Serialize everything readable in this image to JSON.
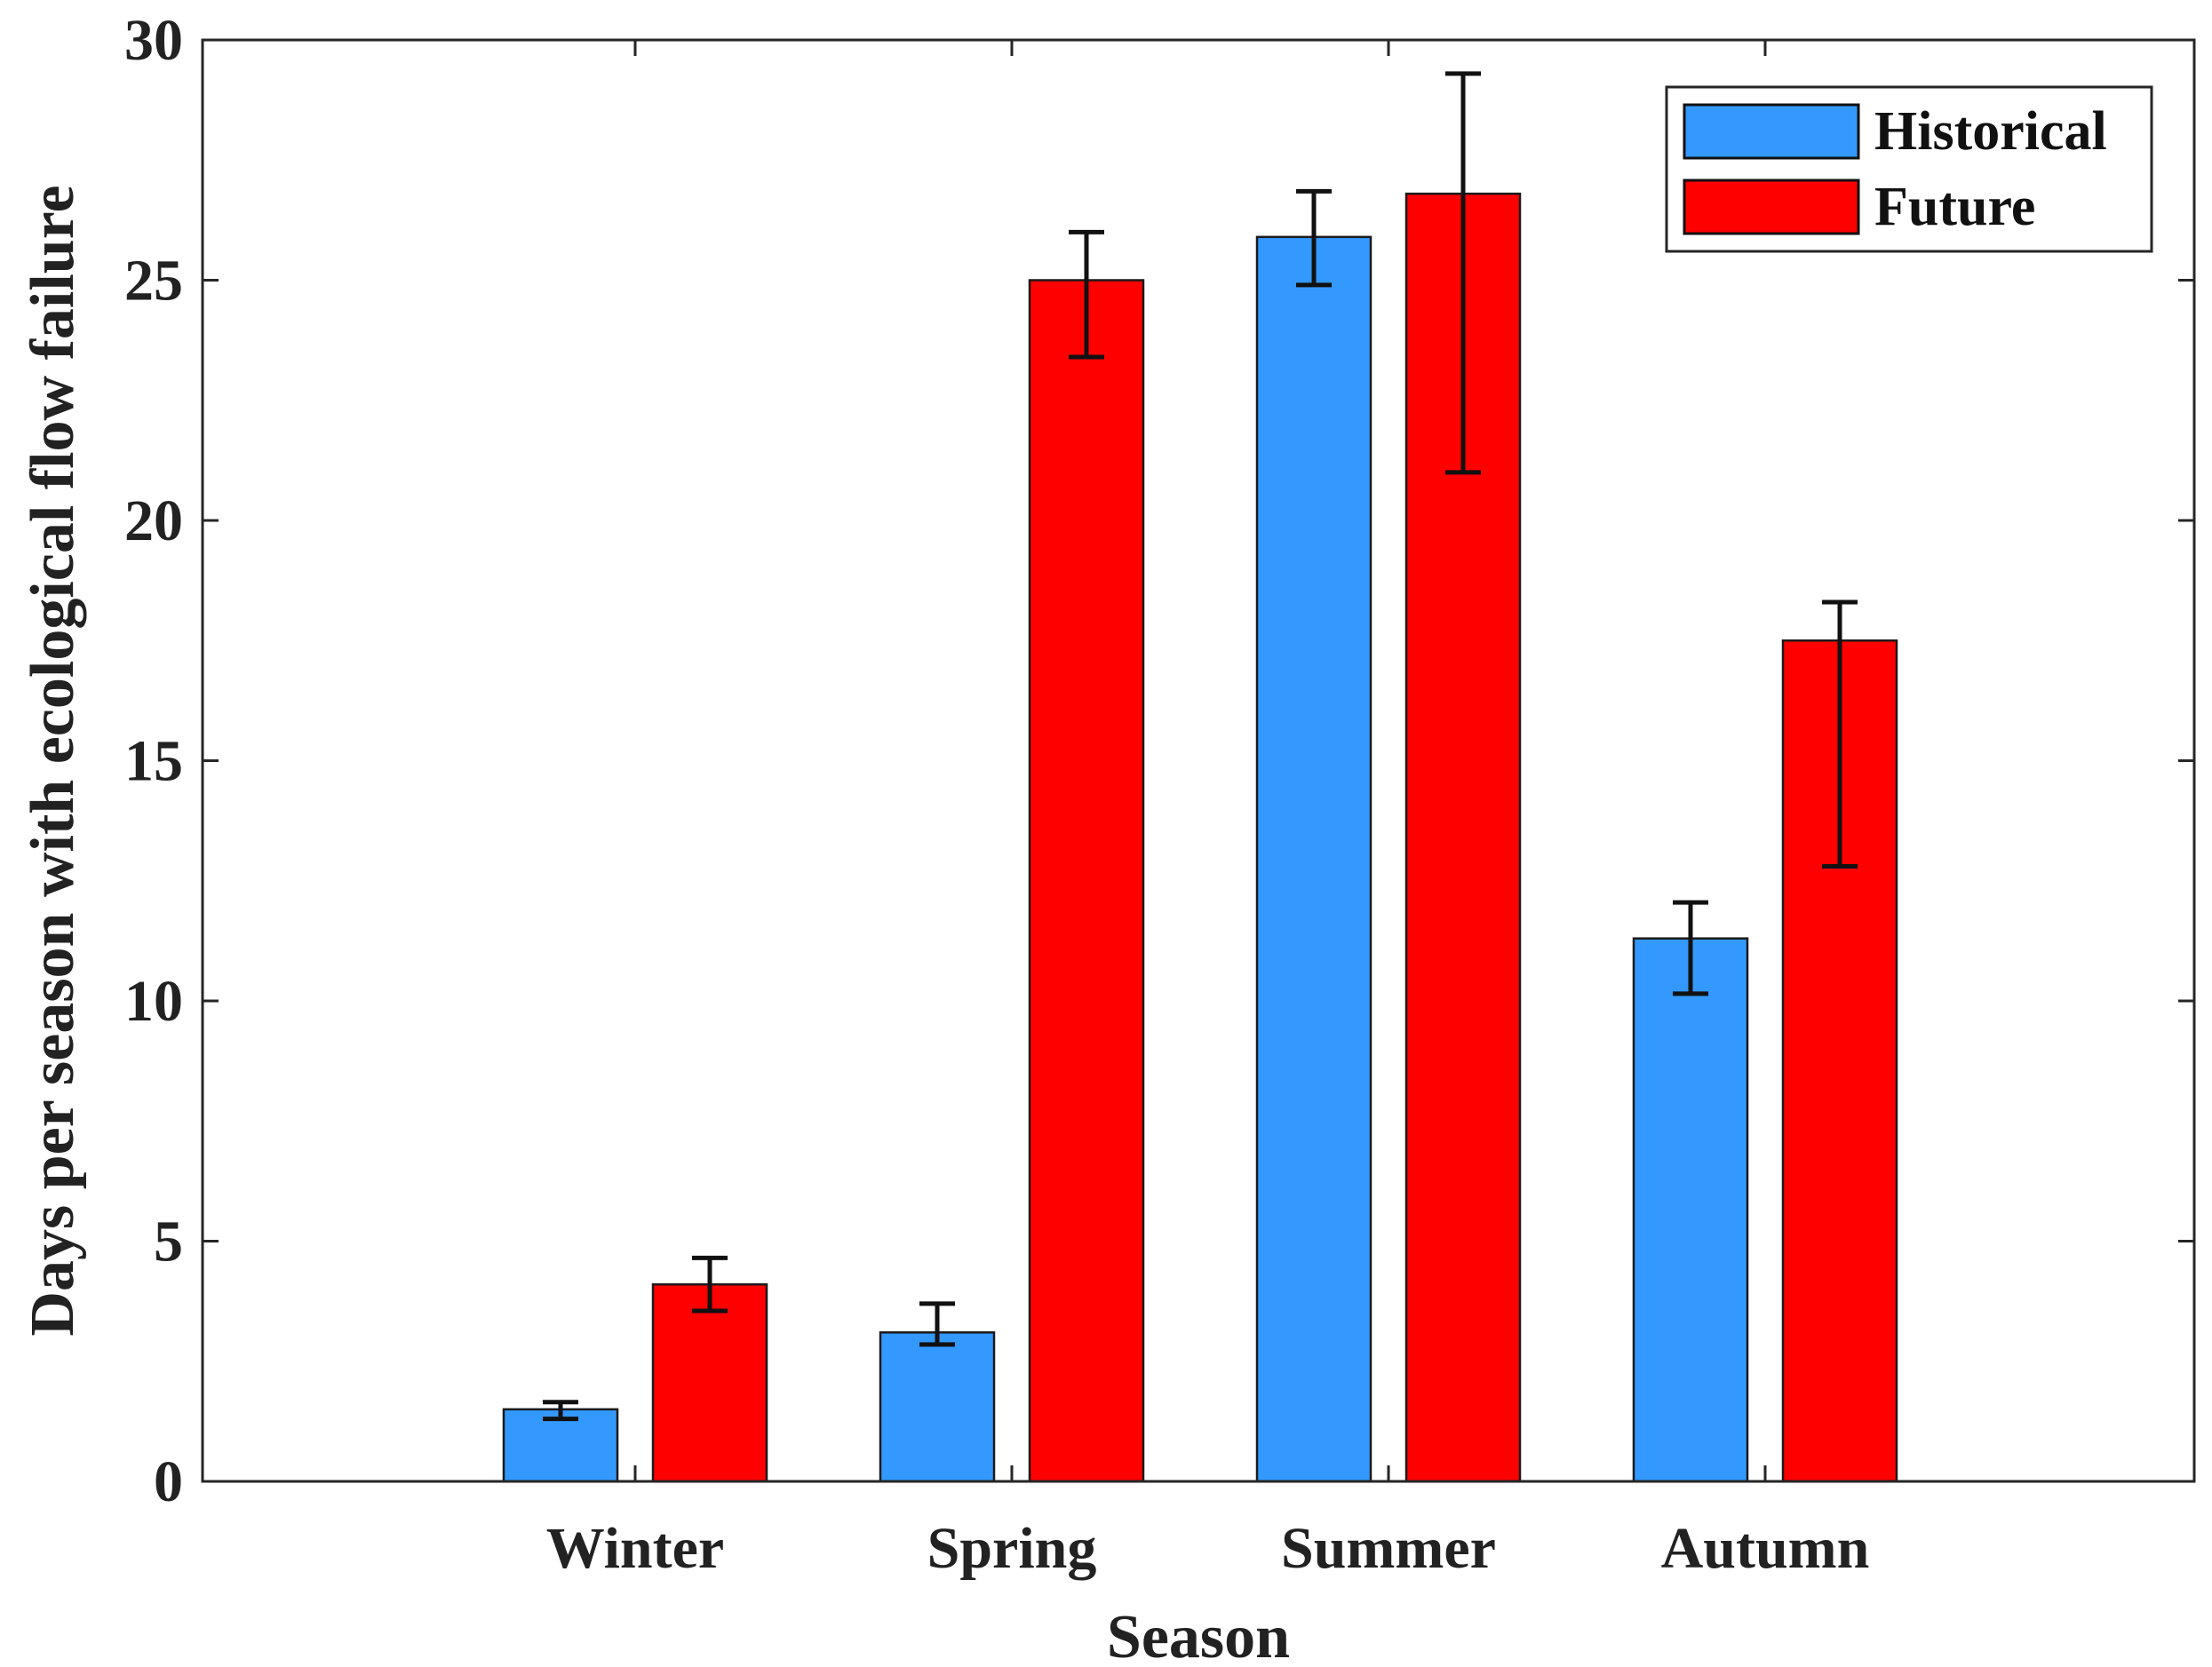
{
  "chart_data": {
    "type": "bar",
    "title": "",
    "xlabel": "Season",
    "ylabel": "Days per season with ecological flow failure",
    "categories": [
      "Winter",
      "Spring",
      "Summer",
      "Autumn"
    ],
    "ylim": [
      0,
      30
    ],
    "yticks": [
      0,
      5,
      10,
      15,
      20,
      25,
      30
    ],
    "grid": false,
    "legend_position": "top-right",
    "series": [
      {
        "name": "Historical",
        "color": "#3399ff",
        "values": [
          1.5,
          3.1,
          25.9,
          11.3
        ],
        "error_low": [
          1.3,
          2.85,
          24.9,
          10.15
        ],
        "error_high": [
          1.65,
          3.7,
          26.85,
          12.05
        ]
      },
      {
        "name": "Future",
        "color": "#ff0000",
        "values": [
          4.1,
          25.0,
          26.8,
          17.5
        ],
        "error_low": [
          3.55,
          23.4,
          21.0,
          12.8
        ],
        "error_high": [
          4.65,
          26.0,
          29.3,
          18.3
        ]
      }
    ]
  }
}
